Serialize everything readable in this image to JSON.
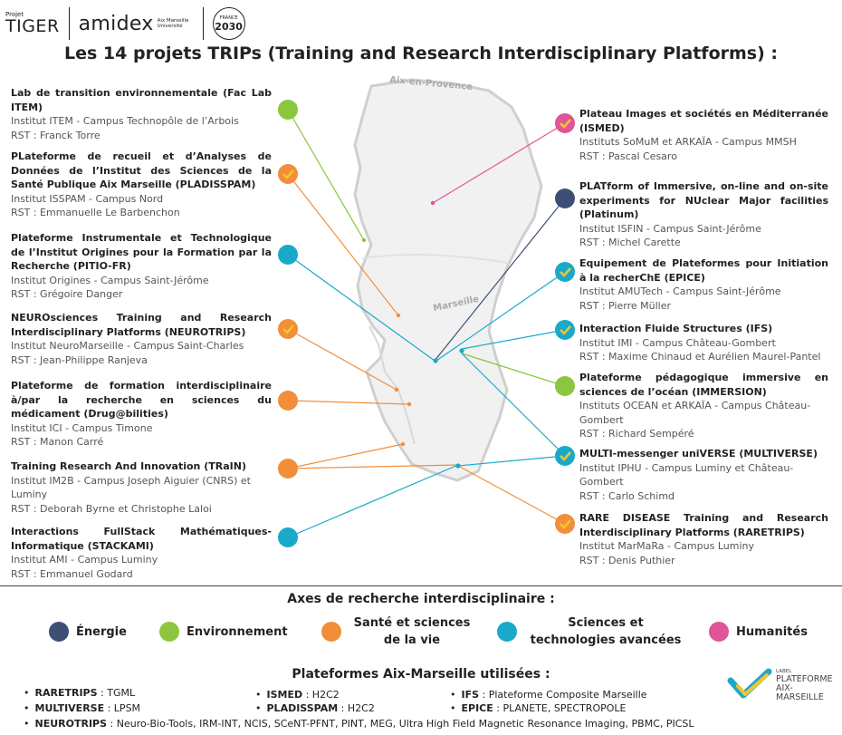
{
  "logos": {
    "tiger_small": "Projet",
    "tiger_big": "TIGER",
    "amidex": "amidex",
    "amidex_sub": "Aix Marseille Université",
    "france_top": "FRANCE",
    "france_year": "2030"
  },
  "title": "Les 14 projets TRIPs (Training and Research Interdisciplinary Platforms) :",
  "cities": {
    "aix": "Aix-en-Provence",
    "marseille": "Marseille"
  },
  "projects_left": [
    {
      "title": "Lab de transition environnementale (Fac Lab ITEM)",
      "institut": "Institut ITEM - Campus Technopôle de l’Arbois",
      "rst": "RST : Franck Torre"
    },
    {
      "title": "PLateforme de recueil et d’Analyses de Données de l’Institut des Sciences de la Santé Publique Aix Marseille (PLADISSPAM)",
      "institut": "Institut ISSPAM - Campus Nord",
      "rst": "RST : Emmanuelle Le Barbenchon"
    },
    {
      "title": "Plateforme Instrumentale et Technologique de l’Institut Origines pour la Formation par la Recherche (PITIO-FR)",
      "institut": "Institut Origines - Campus Saint-Jérôme",
      "rst": "RST : Grégoire Danger"
    },
    {
      "title": "NEUROsciences Training and Research Interdisciplinary Platforms (NEUROTRIPS)",
      "institut": "Institut NeuroMarseille - Campus Saint-Charles",
      "rst": "RST : Jean-Philippe Ranjeva"
    },
    {
      "title": "Plateforme de formation interdisciplinaire à/par la recherche en sciences du médicament (Drug@bilities)",
      "institut": "Institut ICI - Campus Timone",
      "rst": "RST : Manon Carré"
    },
    {
      "title": "Training Research And Innovation (TRaIN)",
      "institut": "Institut IM2B - Campus Joseph Aiguier (CNRS) et Luminy",
      "rst": "RST : Deborah Byrne et Christophe Laloi"
    },
    {
      "title": "Interactions FullStack Mathématiques-Informatique (STACKAMI)",
      "institut": "Institut AMI - Campus Luminy",
      "rst": "RST : Emmanuel Godard"
    }
  ],
  "projects_right": [
    {
      "title": "Plateau Images et sociétés en Méditerranée (ISMED)",
      "institut": "Instituts SoMuM et ARKAÏA - Campus MMSH",
      "rst": "RST : Pascal Cesaro"
    },
    {
      "title": "PLATform of Immersive, on-line and on-site experiments for NUclear Major facilities (Platinum)",
      "institut": "Institut ISFIN - Campus Saint-Jérôme",
      "rst": "RST  : Michel Carette"
    },
    {
      "title": "Equipement de Plateformes pour Initiation à la recherChE (EPICE)",
      "institut": "Institut AMUTech - Campus Saint-Jérôme",
      "rst": "RST : Pierre Müller"
    },
    {
      "title": "Interaction Fluide Structures (IFS)",
      "institut": "Institut IMI - Campus Château-Gombert",
      "rst": "RST : Maxime Chinaud et Aurélien Maurel-Pantel"
    },
    {
      "title": "Plateforme pédagogique immersive en sciences de l’océan (IMMERSION)",
      "institut": "Instituts OCEAN et ARKAÏA - Campus Château-Gombert",
      "rst": "RST : Richard Sempéré"
    },
    {
      "title": "MULTI-messenger uniVERSE (MULTIVERSE)",
      "institut": "Institut IPHU - Campus Luminy et Château-Gombert",
      "rst": "RST : Carlo Schimd"
    },
    {
      "title": "RARE DISEASE Training and Research Interdisciplinary Platforms (RARETRIPS)",
      "institut": "Institut MarMaRa - Campus Luminy",
      "rst": "RST : Denis Puthier"
    }
  ],
  "axes_title": "Axes de recherche interdisciplinaire :",
  "axes": [
    {
      "label": "Énergie",
      "color": "#3d4f74"
    },
    {
      "label": "Environnement",
      "color": "#8cc63f"
    },
    {
      "label": "Santé et sciences de la vie",
      "color": "#f28e3a"
    },
    {
      "label": "Sciences et technologies avancées",
      "color": "#1aa9c9"
    },
    {
      "label": "Humanités",
      "color": "#e05598"
    }
  ],
  "platforms_title": "Plateformes Aix-Marseille utilisées :",
  "platforms": [
    {
      "name": "RARETRIPS",
      "value": " : TGML"
    },
    {
      "name": "MULTIVERSE",
      "value": " : LPSM"
    },
    {
      "name": "NEUROTRIPS",
      "value": " : Neuro-Bio-Tools, IRM-INT, NCIS, SCeNT-PFNT, PINT, MEG, Ultra High Field Magnetic Resonance Imaging, PBMC, PICSL"
    },
    {
      "name": "ISMED",
      "value": " : H2C2"
    },
    {
      "name": "PLADISSPAM",
      "value": " : H2C2"
    },
    {
      "name": "IFS",
      "value": " : Plateforme Composite Marseille"
    },
    {
      "name": "EPICE",
      "value": " : PLANETE, SPECTROPOLE"
    }
  ],
  "label_logo": {
    "small": "LABEL",
    "line1": "PLATEFORME",
    "line2": "AIX-MARSEILLE"
  }
}
